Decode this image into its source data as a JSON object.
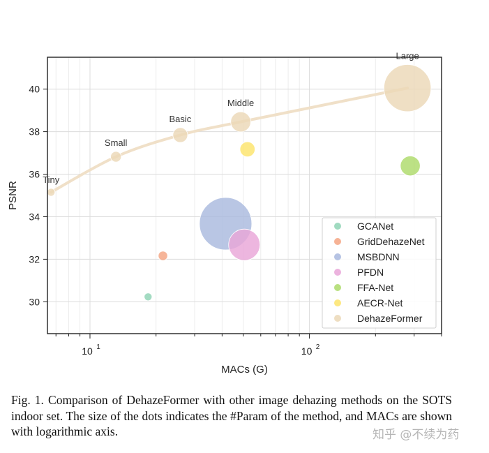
{
  "chart_data": {
    "type": "scatter",
    "x_scale": "log",
    "xlabel": "MACs (G)",
    "ylabel": "PSNR",
    "xlim": [
      6.4,
      400
    ],
    "ylim": [
      28.5,
      41.5
    ],
    "x_tick_labels": [
      {
        "value": 10,
        "base": "10",
        "exp": "1"
      },
      {
        "value": 100,
        "base": "10",
        "exp": "2"
      }
    ],
    "y_ticks": [
      30,
      32,
      34,
      36,
      38,
      40
    ],
    "grid": true,
    "legend_position": "lower-right",
    "series": [
      {
        "name": "GCANet",
        "color": "#8fd3b5",
        "points": [
          {
            "x": 18.4,
            "y": 30.23,
            "size": 0.7
          }
        ]
      },
      {
        "name": "GridDehazeNet",
        "color": "#f4a582",
        "points": [
          {
            "x": 21.5,
            "y": 32.16,
            "size": 1.0
          }
        ]
      },
      {
        "name": "MSBDNN",
        "color": "#a9b9de",
        "points": [
          {
            "x": 41.5,
            "y": 33.67,
            "size": 31.4
          }
        ]
      },
      {
        "name": "PFDN",
        "color": "#e9a6d8",
        "points": [
          {
            "x": 50.5,
            "y": 32.68,
            "size": 11.3
          }
        ]
      },
      {
        "name": "FFA-Net",
        "color": "#addb6a",
        "points": [
          {
            "x": 288,
            "y": 36.39,
            "size": 4.5
          }
        ]
      },
      {
        "name": "AECR-Net",
        "color": "#fde46b",
        "points": [
          {
            "x": 52.2,
            "y": 37.17,
            "size": 2.6
          }
        ]
      },
      {
        "name": "DehazeFormer",
        "color": "#ebd8b7",
        "points": [
          {
            "x": 6.65,
            "y": 35.15,
            "size": 0.7,
            "label": "Tiny"
          },
          {
            "x": 13.13,
            "y": 36.82,
            "size": 1.3,
            "label": "Small"
          },
          {
            "x": 25.79,
            "y": 37.84,
            "size": 2.5,
            "label": "Basic"
          },
          {
            "x": 48.64,
            "y": 38.46,
            "size": 4.6,
            "label": "Middle"
          },
          {
            "x": 279.7,
            "y": 40.05,
            "size": 25.4,
            "label": "Large"
          }
        ]
      }
    ],
    "trend_line": {
      "series": "DehazeFormer",
      "color": "#f0e0c8"
    }
  },
  "caption": {
    "text": "Fig. 1.   Comparison of DehazeFormer with other image dehazing methods on the SOTS indoor set. The size of the dots indicates the #Param of the method, and MACs are shown with logarithmic axis."
  },
  "watermark": "知乎 @不续为药"
}
